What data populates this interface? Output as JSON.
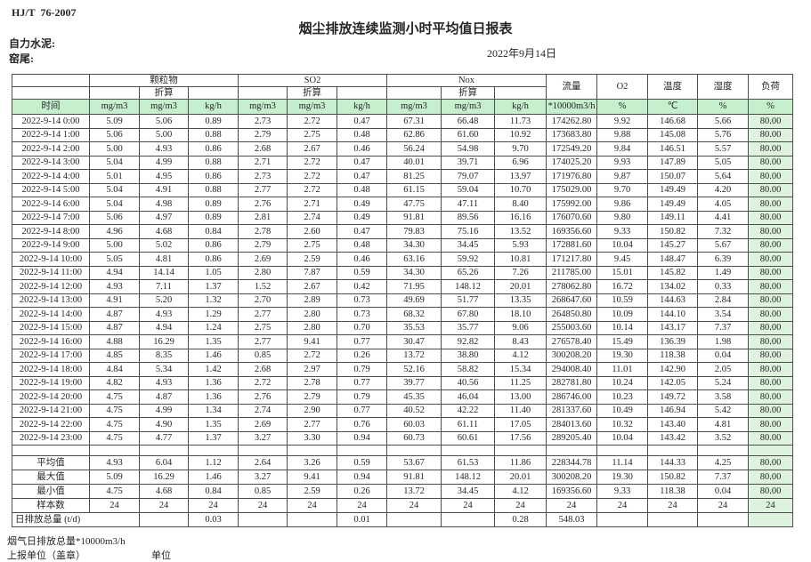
{
  "page": {
    "standard": "HJ/T  76-2007",
    "title": "烟尘排放连续监测小时平均值日报表",
    "company": "自力水泥:",
    "location": "窑尾:",
    "date": "2022年9月14日"
  },
  "colors": {
    "header_green": "#c6efce",
    "load_column_green": "#ddf3dd",
    "border": "#4d4d4d"
  },
  "table": {
    "groups": {
      "pm": "颗粒物",
      "so2": "SO2",
      "nox": "Nox",
      "flow": "流量",
      "o2": "O2",
      "temp": "温度",
      "humidity": "湿度",
      "load": "负荷"
    },
    "subheader": "折算",
    "units": {
      "time": "时间",
      "mgm3": "mg/m3",
      "kgh": "kg/h",
      "flow": "*10000m3/h",
      "pct": "%",
      "celsius": "℃"
    },
    "rows": [
      [
        "2022-9-14 0:00",
        "5.09",
        "5.06",
        "0.89",
        "2.73",
        "2.72",
        "0.47",
        "67.31",
        "66.48",
        "11.73",
        "174262.80",
        "9.92",
        "146.68",
        "5.66",
        "80.00"
      ],
      [
        "2022-9-14 1:00",
        "5.06",
        "5.00",
        "0.88",
        "2.79",
        "2.75",
        "0.48",
        "62.86",
        "61.60",
        "10.92",
        "173683.80",
        "9.88",
        "145.08",
        "5.76",
        "80.00"
      ],
      [
        "2022-9-14 2:00",
        "5.00",
        "4.93",
        "0.86",
        "2.68",
        "2.67",
        "0.46",
        "56.24",
        "54.98",
        "9.70",
        "172549.20",
        "9.84",
        "146.51",
        "5.57",
        "80.00"
      ],
      [
        "2022-9-14 3:00",
        "5.04",
        "4.99",
        "0.88",
        "2.71",
        "2.72",
        "0.47",
        "40.01",
        "39.71",
        "6.96",
        "174025.20",
        "9.93",
        "147.89",
        "5.05",
        "80.00"
      ],
      [
        "2022-9-14 4:00",
        "5.01",
        "4.95",
        "0.86",
        "2.73",
        "2.72",
        "0.47",
        "81.25",
        "79.07",
        "13.97",
        "171976.80",
        "9.87",
        "150.07",
        "5.64",
        "80.00"
      ],
      [
        "2022-9-14 5:00",
        "5.04",
        "4.91",
        "0.88",
        "2.77",
        "2.72",
        "0.48",
        "61.15",
        "59.04",
        "10.70",
        "175029.00",
        "9.70",
        "149.49",
        "4.20",
        "80.00"
      ],
      [
        "2022-9-14 6:00",
        "5.04",
        "4.98",
        "0.89",
        "2.76",
        "2.71",
        "0.49",
        "47.75",
        "47.11",
        "8.40",
        "175992.00",
        "9.86",
        "149.49",
        "4.05",
        "80.00"
      ],
      [
        "2022-9-14 7:00",
        "5.06",
        "4.97",
        "0.89",
        "2.81",
        "2.74",
        "0.49",
        "91.81",
        "89.56",
        "16.16",
        "176070.60",
        "9.80",
        "149.11",
        "4.41",
        "80.00"
      ],
      [
        "2022-9-14 8:00",
        "4.96",
        "4.68",
        "0.84",
        "2.78",
        "2.60",
        "0.47",
        "79.83",
        "75.16",
        "13.52",
        "169356.60",
        "9.33",
        "150.82",
        "7.32",
        "80.00"
      ],
      [
        "2022-9-14 9:00",
        "5.00",
        "5.02",
        "0.86",
        "2.79",
        "2.75",
        "0.48",
        "34.30",
        "34.45",
        "5.93",
        "172881.60",
        "10.04",
        "145.27",
        "5.67",
        "80.00"
      ],
      [
        "2022-9-14 10:00",
        "5.05",
        "4.81",
        "0.86",
        "2.69",
        "2.59",
        "0.46",
        "63.16",
        "59.92",
        "10.81",
        "171217.80",
        "9.45",
        "148.47",
        "6.39",
        "80.00"
      ],
      [
        "2022-9-14 11:00",
        "4.94",
        "14.14",
        "1.05",
        "2.80",
        "7.87",
        "0.59",
        "34.30",
        "65.26",
        "7.26",
        "211785.00",
        "15.01",
        "145.82",
        "1.49",
        "80.00"
      ],
      [
        "2022-9-14 12:00",
        "4.93",
        "7.11",
        "1.37",
        "1.52",
        "2.67",
        "0.42",
        "71.95",
        "148.12",
        "20.01",
        "278062.80",
        "16.72",
        "134.02",
        "0.33",
        "80.00"
      ],
      [
        "2022-9-14 13:00",
        "4.91",
        "5.20",
        "1.32",
        "2.70",
        "2.89",
        "0.73",
        "49.69",
        "51.77",
        "13.35",
        "268647.60",
        "10.59",
        "144.63",
        "2.84",
        "80.00"
      ],
      [
        "2022-9-14 14:00",
        "4.87",
        "4.93",
        "1.29",
        "2.77",
        "2.80",
        "0.73",
        "68.32",
        "67.80",
        "18.10",
        "264850.80",
        "10.09",
        "144.10",
        "3.54",
        "80.00"
      ],
      [
        "2022-9-14 15:00",
        "4.87",
        "4.94",
        "1.24",
        "2.75",
        "2.80",
        "0.70",
        "35.53",
        "35.77",
        "9.06",
        "255003.60",
        "10.14",
        "143.17",
        "7.37",
        "80.00"
      ],
      [
        "2022-9-14 16:00",
        "4.88",
        "16.29",
        "1.35",
        "2.77",
        "9.41",
        "0.77",
        "30.47",
        "92.82",
        "8.43",
        "276578.40",
        "15.49",
        "136.39",
        "1.98",
        "80.00"
      ],
      [
        "2022-9-14 17:00",
        "4.85",
        "8.35",
        "1.46",
        "0.85",
        "2.72",
        "0.26",
        "13.72",
        "38.80",
        "4.12",
        "300208.20",
        "19.30",
        "118.38",
        "0.04",
        "80.00"
      ],
      [
        "2022-9-14 18:00",
        "4.84",
        "5.34",
        "1.42",
        "2.68",
        "2.97",
        "0.79",
        "52.16",
        "58.82",
        "15.34",
        "294008.40",
        "11.01",
        "142.90",
        "2.05",
        "80.00"
      ],
      [
        "2022-9-14 19:00",
        "4.82",
        "4.93",
        "1.36",
        "2.72",
        "2.78",
        "0.77",
        "39.77",
        "40.56",
        "11.25",
        "282781.80",
        "10.24",
        "142.05",
        "5.24",
        "80.00"
      ],
      [
        "2022-9-14 20:00",
        "4.75",
        "4.87",
        "1.36",
        "2.76",
        "2.79",
        "0.79",
        "45.35",
        "46.04",
        "13.00",
        "286746.00",
        "10.23",
        "149.72",
        "3.58",
        "80.00"
      ],
      [
        "2022-9-14 21:00",
        "4.75",
        "4.99",
        "1.34",
        "2.74",
        "2.90",
        "0.77",
        "40.52",
        "42.22",
        "11.40",
        "281337.60",
        "10.49",
        "146.94",
        "5.42",
        "80.00"
      ],
      [
        "2022-9-14 22:00",
        "4.75",
        "4.90",
        "1.35",
        "2.69",
        "2.77",
        "0.76",
        "60.03",
        "61.11",
        "17.05",
        "284013.60",
        "10.32",
        "143.40",
        "4.81",
        "80.00"
      ],
      [
        "2022-9-14 23:00",
        "4.75",
        "4.77",
        "1.37",
        "3.27",
        "3.30",
        "0.94",
        "60.73",
        "60.61",
        "17.56",
        "289205.40",
        "10.04",
        "143.42",
        "3.52",
        "80.00"
      ]
    ],
    "summary": [
      {
        "label": "平均值",
        "values": [
          "4.93",
          "6.04",
          "1.12",
          "2.64",
          "3.26",
          "0.59",
          "53.67",
          "61.53",
          "11.86",
          "228344.78",
          "11.14",
          "144.33",
          "4.25",
          "80.00"
        ]
      },
      {
        "label": "最大值",
        "values": [
          "5.09",
          "16.29",
          "1.46",
          "3.27",
          "9.41",
          "0.94",
          "91.81",
          "148.12",
          "20.01",
          "300208.20",
          "19.30",
          "150.82",
          "7.37",
          "80.00"
        ]
      },
      {
        "label": "最小值",
        "values": [
          "4.75",
          "4.68",
          "0.84",
          "0.85",
          "2.59",
          "0.26",
          "13.72",
          "34.45",
          "4.12",
          "169356.60",
          "9.33",
          "118.38",
          "0.04",
          "80.00"
        ]
      },
      {
        "label": "样本数",
        "values": [
          "24",
          "24",
          "24",
          "24",
          "24",
          "24",
          "24",
          "24",
          "24",
          "24",
          "24",
          "24",
          "24",
          "24"
        ]
      }
    ],
    "daily_total": {
      "label": "日排放总量 (t/d)",
      "cells": [
        "",
        "0.03",
        "",
        "",
        "0.01",
        "",
        "",
        "0.28",
        "548.03",
        "",
        "",
        "",
        ""
      ]
    }
  },
  "footer": {
    "flue_total": "烟气日排放总量*10000m3/h",
    "report_unit": "上报单位（盖章）",
    "unit": "单位"
  }
}
